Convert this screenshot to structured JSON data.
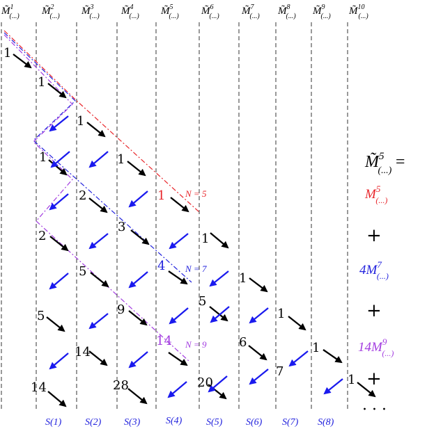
{
  "headers": [
    {
      "base": "M̃",
      "sup": "1",
      "sub": "(...)"
    },
    {
      "base": "M̃",
      "sup": "2",
      "sub": "(...)"
    },
    {
      "base": "M̃",
      "sup": "3",
      "sub": "(...)"
    },
    {
      "base": "M̃",
      "sup": "4",
      "sub": "(...)"
    },
    {
      "base": "M̃",
      "sup": "5",
      "sub": "(...)"
    },
    {
      "base": "M̃",
      "sup": "6",
      "sub": "(...)"
    },
    {
      "base": "M̃",
      "sup": "7",
      "sub": "(...)"
    },
    {
      "base": "M̃",
      "sup": "8",
      "sub": "(...)"
    },
    {
      "base": "M̃",
      "sup": "9",
      "sub": "(...)"
    },
    {
      "base": "M̃",
      "sup": "10",
      "sub": "(...)"
    }
  ],
  "numbers": [
    {
      "text": "1",
      "color": "#000000"
    },
    {
      "text": "1",
      "color": "#000000"
    },
    {
      "text": "1",
      "color": "#000000"
    },
    {
      "text": "1",
      "color": "#000000"
    },
    {
      "text": "1",
      "color": "#000000"
    },
    {
      "text": "2",
      "color": "#000000"
    },
    {
      "text": "1",
      "color": "#e8262b"
    },
    {
      "text": "3",
      "color": "#000000"
    },
    {
      "text": "2",
      "color": "#000000"
    },
    {
      "text": "1",
      "color": "#000000"
    },
    {
      "text": "5",
      "color": "#000000"
    },
    {
      "text": "4",
      "color": "#2222dd"
    },
    {
      "text": "1",
      "color": "#000000"
    },
    {
      "text": "9",
      "color": "#000000"
    },
    {
      "text": "5",
      "color": "#000000"
    },
    {
      "text": "5",
      "color": "#000000"
    },
    {
      "text": "1",
      "color": "#000000"
    },
    {
      "text": "14",
      "color": "#a33de0"
    },
    {
      "text": "6",
      "color": "#000000"
    },
    {
      "text": "14",
      "color": "#000000"
    },
    {
      "text": "7",
      "color": "#000000"
    },
    {
      "text": "1",
      "color": "#000000"
    },
    {
      "text": "14",
      "color": "#000000"
    },
    {
      "text": "28",
      "color": "#000000"
    },
    {
      "text": "20",
      "color": "#000000"
    },
    {
      "text": "1",
      "color": "#000000"
    }
  ],
  "n_labels": [
    {
      "text": "N = 5",
      "color": "#e8262b"
    },
    {
      "text": "N = 7",
      "color": "#2222dd"
    },
    {
      "text": "N = 9",
      "color": "#a33de0"
    }
  ],
  "s_labels": [
    "S(1)",
    "S(2)",
    "S(3)",
    "S(4)",
    "S(5)",
    "S(6)",
    "S(7)",
    "S(8)"
  ],
  "s_label_color": "#2222dd",
  "equation": {
    "lhs_base": "M̃",
    "lhs_sup": "5",
    "lhs_sub": "(...)",
    "eq": "=",
    "terms": [
      {
        "coef": "",
        "base": "M",
        "sup": "5",
        "sub": "(...)",
        "color": "#e8262b"
      },
      {
        "coef": "4",
        "base": "M",
        "sup": "7",
        "sub": "(...)",
        "color": "#2222dd"
      },
      {
        "coef": "14",
        "base": "M",
        "sup": "9",
        "sub": "(...)",
        "color": "#a33de0"
      }
    ],
    "plus": "+",
    "ellipsis": "· · ·"
  },
  "colors": {
    "black_arrow": "#000000",
    "blue_arrow": "#1a1aee",
    "grid": "#333333",
    "red_path": "#e8262b",
    "blue_path": "#2222dd",
    "purple_path": "#a33de0"
  }
}
